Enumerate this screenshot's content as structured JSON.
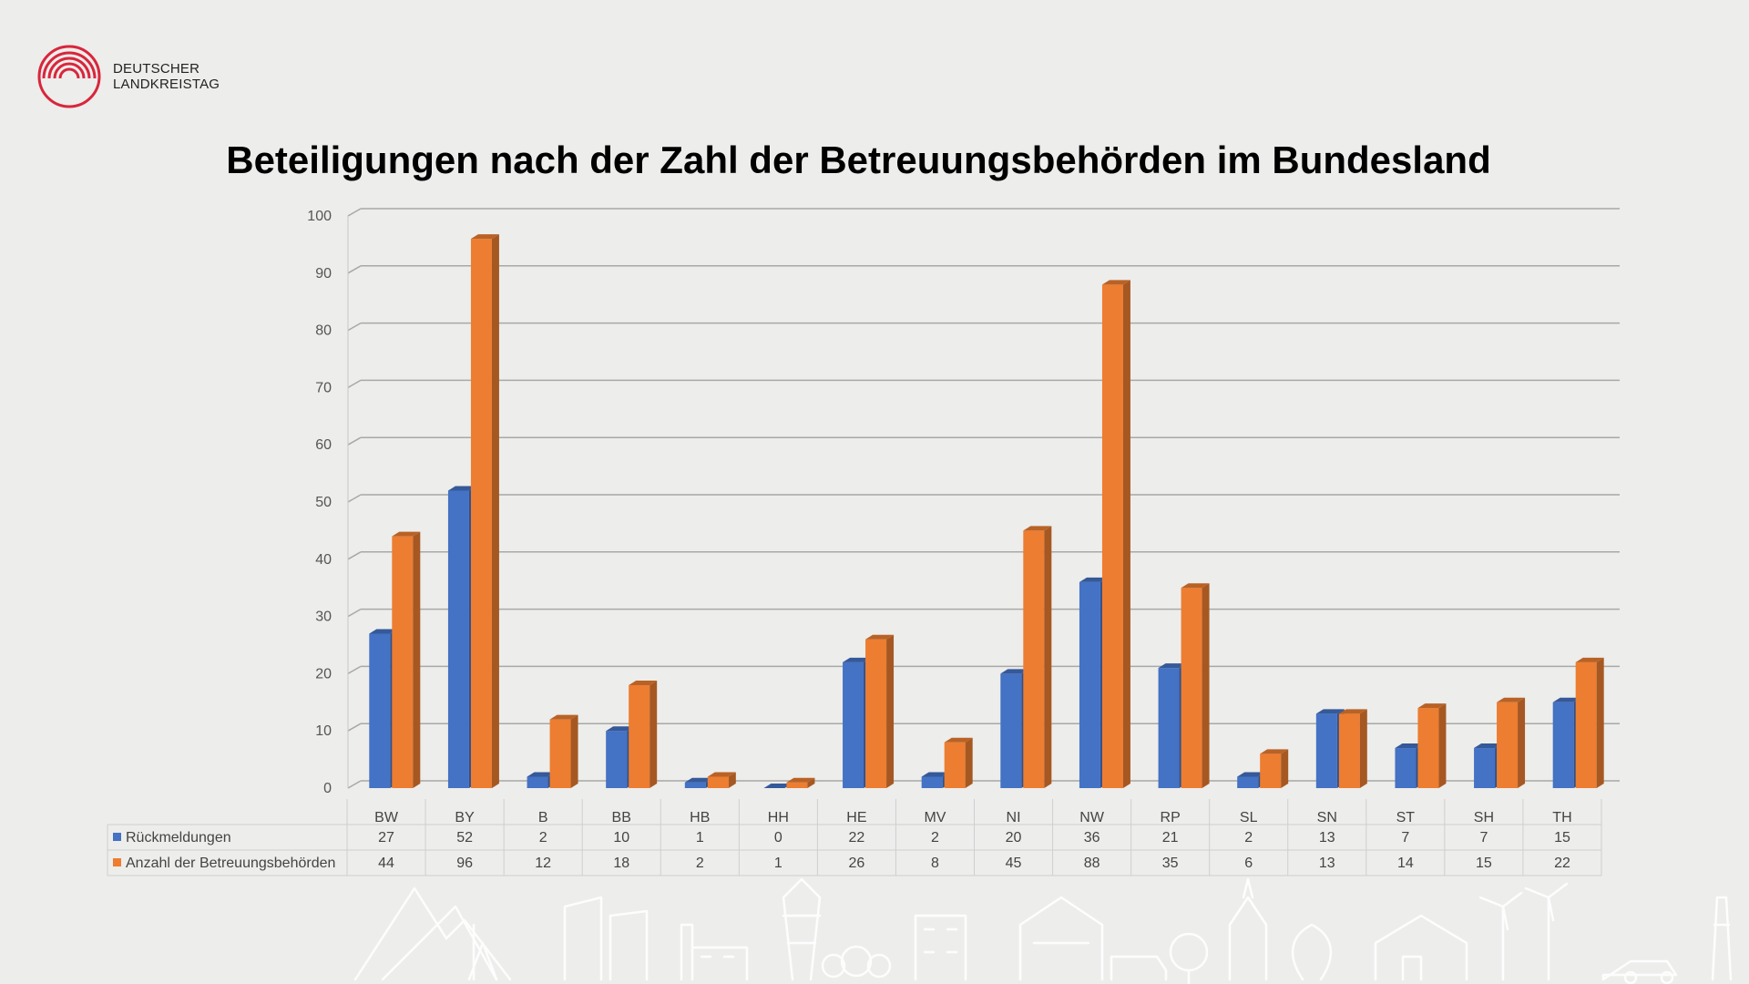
{
  "header": {
    "logo_line1": "DEUTSCHER",
    "logo_line2": "LANDKREISTAG",
    "brand_color": "#d8263c"
  },
  "chart_data": {
    "type": "bar",
    "title": "Beteiligungen nach der Zahl der Betreuungsbehörden im Bundesland",
    "categories": [
      "BW",
      "BY",
      "B",
      "BB",
      "HB",
      "HH",
      "HE",
      "MV",
      "NI",
      "NW",
      "RP",
      "SL",
      "SN",
      "ST",
      "SH",
      "TH"
    ],
    "series": [
      {
        "name": "Rückmeldungen",
        "color": "#4472c4",
        "values": [
          27,
          52,
          2,
          10,
          1,
          0,
          22,
          2,
          20,
          36,
          21,
          2,
          13,
          7,
          7,
          15
        ]
      },
      {
        "name": "Anzahl der Betreuungsbehörden",
        "color": "#ed7d31",
        "values": [
          44,
          96,
          12,
          18,
          2,
          1,
          26,
          8,
          45,
          88,
          35,
          6,
          13,
          14,
          15,
          22
        ]
      }
    ],
    "ylim": [
      0,
      100
    ],
    "yticks": [
      0,
      10,
      20,
      30,
      40,
      50,
      60,
      70,
      80,
      90,
      100
    ],
    "grid": true,
    "data_table": true,
    "style": "3d-clustered-column"
  }
}
